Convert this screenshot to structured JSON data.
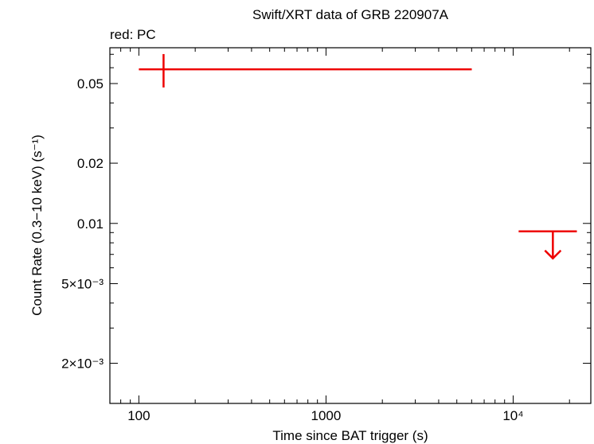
{
  "chart_data": {
    "type": "scatter",
    "title": "Swift/XRT data of GRB 220907A",
    "annotation": "red: PC",
    "x_label": "Time since BAT trigger (s)",
    "y_label": "Count Rate (0.3−10 keV) (s⁻¹)",
    "x_log": true,
    "y_log": true,
    "xlim": [
      70,
      26000
    ],
    "ylim": [
      0.00126,
      0.0755
    ],
    "xticks": [
      100,
      1000,
      {
        "value": 10000,
        "label": "10⁴"
      }
    ],
    "yticks": [
      0.05,
      0.02,
      0.01,
      {
        "value": 0.005,
        "label": "5×10⁻³"
      },
      {
        "value": 0.002,
        "label": "2×10⁻³"
      }
    ],
    "xminorticks": [
      80,
      90,
      200,
      300,
      400,
      500,
      600,
      700,
      800,
      900,
      2000,
      3000,
      4000,
      5000,
      6000,
      7000,
      8000,
      9000,
      20000
    ],
    "yminorticks": [
      0.003,
      0.004,
      0.006,
      0.007,
      0.008,
      0.009,
      0.03,
      0.04,
      0.06,
      0.07
    ],
    "series": [
      {
        "color": "#ee0000",
        "kind": "point",
        "x": [
          135.5
        ],
        "x_low": [
          100
        ],
        "x_high": [
          6010
        ],
        "values": [
          0.0589
        ],
        "y_low": [
          0.0478
        ],
        "y_high": [
          0.0702
        ]
      },
      {
        "color": "#ee0000",
        "kind": "upper_limit",
        "x": [
          16300
        ],
        "x_low": [
          10700
        ],
        "x_high": [
          21900
        ],
        "values": [
          0.00913
        ]
      }
    ]
  }
}
